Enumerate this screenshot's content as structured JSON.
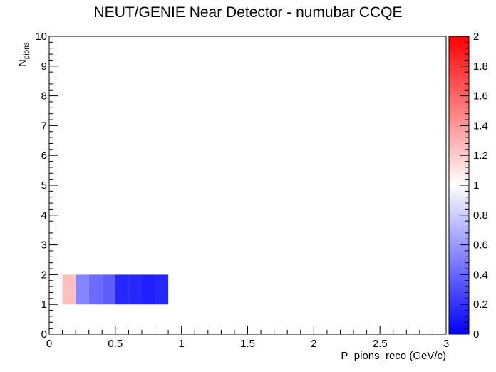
{
  "chart_data": {
    "type": "heatmap",
    "title": "NEUT/GENIE Near Detector - numubar CCQE",
    "xlabel": "P_pions_reco (GeV/c)",
    "ylabel": "N",
    "ylabel_subscript": "pions",
    "xlim": [
      0,
      3
    ],
    "ylim": [
      0,
      10
    ],
    "x_ticks": [
      "0",
      "0.5",
      "1",
      "1.5",
      "2",
      "2.5",
      "3"
    ],
    "y_ticks": [
      "0",
      "1",
      "2",
      "3",
      "4",
      "5",
      "6",
      "7",
      "8",
      "9",
      "10"
    ],
    "colorbar": {
      "range": [
        0,
        2
      ],
      "ticks": [
        "0",
        "0.2",
        "0.4",
        "0.6",
        "0.8",
        "1",
        "1.2",
        "1.4",
        "1.6",
        "1.8",
        "2"
      ],
      "colors": [
        "#0000ff",
        "#ffffff",
        "#ff0000"
      ]
    },
    "cells": [
      {
        "x0": 0.1,
        "x1": 0.2,
        "y0": 1,
        "y1": 2,
        "value": 1.25
      },
      {
        "x0": 0.2,
        "x1": 0.3,
        "y0": 1,
        "y1": 2,
        "value": 0.52
      },
      {
        "x0": 0.3,
        "x1": 0.4,
        "y0": 1,
        "y1": 2,
        "value": 0.42
      },
      {
        "x0": 0.4,
        "x1": 0.5,
        "y0": 1,
        "y1": 2,
        "value": 0.37
      },
      {
        "x0": 0.5,
        "x1": 0.6,
        "y0": 1,
        "y1": 2,
        "value": 0.15
      },
      {
        "x0": 0.6,
        "x1": 0.7,
        "y0": 1,
        "y1": 2,
        "value": 0.15
      },
      {
        "x0": 0.7,
        "x1": 0.8,
        "y0": 1,
        "y1": 2,
        "value": 0.12
      },
      {
        "x0": 0.8,
        "x1": 0.9,
        "y0": 1,
        "y1": 2,
        "value": 0.15
      }
    ]
  }
}
